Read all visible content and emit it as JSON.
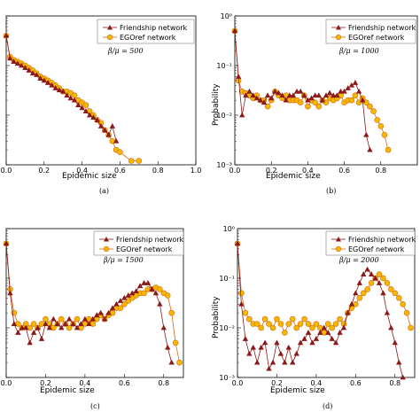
{
  "colors": {
    "friendship": "#8b1a1a",
    "egoref_fill": "#f5b800",
    "egoref_line": "#d96a10"
  },
  "chart_data": [
    {
      "type": "line",
      "caption": "(a)",
      "annotation": "β/μ = 500",
      "xlabel": "Epidemic size",
      "ylabel": "",
      "xlim": [
        0,
        1.0
      ],
      "ylim": [
        0.001,
        1
      ],
      "yscale": "log",
      "x_ticks": [
        "0.0",
        "0.2",
        "0.4",
        "0.6",
        "0.8",
        "1.0"
      ],
      "y_tick_labels": [
        "",
        "",
        "",
        ""
      ],
      "legend": [
        "Friendship network",
        "EGOref network"
      ],
      "legend_position": "top-right",
      "series": [
        {
          "name": "Friendship network",
          "marker": "triangle",
          "x": [
            0.0,
            0.02,
            0.04,
            0.06,
            0.08,
            0.1,
            0.12,
            0.14,
            0.16,
            0.18,
            0.2,
            0.22,
            0.24,
            0.26,
            0.28,
            0.3,
            0.32,
            0.34,
            0.36,
            0.38,
            0.4,
            0.42,
            0.44,
            0.46,
            0.48,
            0.5,
            0.52,
            0.54,
            0.56,
            0.58
          ],
          "y": [
            0.4,
            0.14,
            0.12,
            0.11,
            0.1,
            0.09,
            0.08,
            0.07,
            0.065,
            0.055,
            0.05,
            0.045,
            0.04,
            0.035,
            0.032,
            0.03,
            0.025,
            0.022,
            0.02,
            0.016,
            0.014,
            0.012,
            0.01,
            0.009,
            0.008,
            0.006,
            0.005,
            0.004,
            0.006,
            0.003
          ]
        },
        {
          "name": "EGOref network",
          "marker": "circle",
          "x": [
            0.0,
            0.02,
            0.04,
            0.06,
            0.08,
            0.1,
            0.12,
            0.14,
            0.16,
            0.18,
            0.2,
            0.22,
            0.24,
            0.26,
            0.28,
            0.3,
            0.32,
            0.34,
            0.36,
            0.38,
            0.4,
            0.42,
            0.44,
            0.46,
            0.48,
            0.5,
            0.52,
            0.54,
            0.56,
            0.58,
            0.6,
            0.66,
            0.7
          ],
          "y": [
            0.4,
            0.15,
            0.13,
            0.12,
            0.11,
            0.1,
            0.09,
            0.08,
            0.07,
            0.06,
            0.055,
            0.05,
            0.045,
            0.04,
            0.035,
            0.03,
            0.03,
            0.028,
            0.025,
            0.02,
            0.018,
            0.016,
            0.012,
            0.01,
            0.008,
            0.007,
            0.005,
            0.004,
            0.003,
            0.002,
            0.0018,
            0.0012,
            0.0012
          ]
        }
      ]
    },
    {
      "type": "line",
      "caption": "(b)",
      "annotation": "β/μ = 1000",
      "xlabel": "Epidemic size",
      "ylabel": "Probability",
      "xlim": [
        0,
        1.0
      ],
      "ylim": [
        0.001,
        1
      ],
      "yscale": "log",
      "x_ticks": [
        "0.0",
        "0.2",
        "0.4",
        "0.6",
        "0.8"
      ],
      "y_tick_labels": [
        "10⁰",
        "10⁻¹",
        "10⁻²",
        "10⁻³"
      ],
      "legend": [
        "Friendship network",
        "EGOref network"
      ],
      "legend_position": "top-right",
      "series": [
        {
          "name": "Friendship network",
          "marker": "triangle",
          "x": [
            0.0,
            0.02,
            0.04,
            0.06,
            0.08,
            0.1,
            0.12,
            0.14,
            0.16,
            0.18,
            0.2,
            0.22,
            0.24,
            0.26,
            0.28,
            0.3,
            0.32,
            0.34,
            0.36,
            0.38,
            0.4,
            0.42,
            0.44,
            0.46,
            0.48,
            0.5,
            0.52,
            0.54,
            0.56,
            0.58,
            0.6,
            0.62,
            0.64,
            0.66,
            0.68,
            0.7,
            0.72,
            0.74
          ],
          "y": [
            0.5,
            0.06,
            0.01,
            0.025,
            0.03,
            0.025,
            0.022,
            0.02,
            0.018,
            0.025,
            0.022,
            0.03,
            0.028,
            0.025,
            0.02,
            0.025,
            0.025,
            0.03,
            0.03,
            0.025,
            0.02,
            0.022,
            0.025,
            0.025,
            0.02,
            0.025,
            0.028,
            0.025,
            0.025,
            0.03,
            0.03,
            0.035,
            0.04,
            0.045,
            0.03,
            0.02,
            0.004,
            0.002
          ]
        },
        {
          "name": "EGOref network",
          "marker": "circle",
          "x": [
            0.0,
            0.02,
            0.04,
            0.06,
            0.08,
            0.1,
            0.12,
            0.14,
            0.16,
            0.18,
            0.2,
            0.22,
            0.24,
            0.26,
            0.28,
            0.3,
            0.32,
            0.34,
            0.36,
            0.38,
            0.4,
            0.42,
            0.44,
            0.46,
            0.48,
            0.5,
            0.52,
            0.54,
            0.56,
            0.58,
            0.6,
            0.62,
            0.64,
            0.66,
            0.68,
            0.7,
            0.72,
            0.74,
            0.76,
            0.78,
            0.8,
            0.82,
            0.84
          ],
          "y": [
            0.5,
            0.05,
            0.03,
            0.028,
            0.025,
            0.022,
            0.025,
            0.02,
            0.02,
            0.015,
            0.02,
            0.03,
            0.025,
            0.022,
            0.025,
            0.02,
            0.02,
            0.02,
            0.018,
            0.025,
            0.015,
            0.02,
            0.018,
            0.015,
            0.02,
            0.018,
            0.022,
            0.02,
            0.022,
            0.025,
            0.018,
            0.02,
            0.02,
            0.025,
            0.018,
            0.022,
            0.018,
            0.015,
            0.012,
            0.008,
            0.006,
            0.004,
            0.002
          ]
        }
      ]
    },
    {
      "type": "line",
      "caption": "(c)",
      "annotation": "β/μ = 1500",
      "xlabel": "Epidemic size",
      "ylabel": "",
      "xlim": [
        0,
        0.9
      ],
      "ylim": [
        0.001,
        1
      ],
      "yscale": "log",
      "x_ticks": [
        "0.0",
        "0.2",
        "0.4",
        "0.6",
        "0.8"
      ],
      "y_tick_labels": [
        "",
        "",
        "",
        ""
      ],
      "legend": [
        "Friendship network",
        "EGOref network"
      ],
      "legend_position": "top-right",
      "series": [
        {
          "name": "Friendship network",
          "marker": "triangle",
          "x": [
            0.0,
            0.02,
            0.04,
            0.06,
            0.08,
            0.1,
            0.12,
            0.14,
            0.16,
            0.18,
            0.2,
            0.22,
            0.24,
            0.26,
            0.28,
            0.3,
            0.32,
            0.34,
            0.36,
            0.38,
            0.4,
            0.42,
            0.44,
            0.46,
            0.48,
            0.5,
            0.52,
            0.54,
            0.56,
            0.58,
            0.6,
            0.62,
            0.64,
            0.66,
            0.68,
            0.7,
            0.72,
            0.74,
            0.76,
            0.78,
            0.8,
            0.82,
            0.84
          ],
          "y": [
            0.5,
            0.05,
            0.012,
            0.008,
            0.01,
            0.01,
            0.005,
            0.008,
            0.01,
            0.006,
            0.012,
            0.01,
            0.015,
            0.012,
            0.01,
            0.012,
            0.015,
            0.012,
            0.01,
            0.012,
            0.015,
            0.012,
            0.015,
            0.018,
            0.02,
            0.015,
            0.02,
            0.025,
            0.03,
            0.035,
            0.04,
            0.045,
            0.05,
            0.055,
            0.07,
            0.08,
            0.08,
            0.06,
            0.05,
            0.03,
            0.01,
            0.004,
            0.002
          ]
        },
        {
          "name": "EGOref network",
          "marker": "circle",
          "x": [
            0.0,
            0.02,
            0.04,
            0.06,
            0.08,
            0.1,
            0.12,
            0.14,
            0.16,
            0.18,
            0.2,
            0.22,
            0.24,
            0.26,
            0.28,
            0.3,
            0.32,
            0.34,
            0.36,
            0.38,
            0.4,
            0.42,
            0.44,
            0.46,
            0.48,
            0.5,
            0.52,
            0.54,
            0.56,
            0.58,
            0.6,
            0.62,
            0.64,
            0.66,
            0.68,
            0.7,
            0.72,
            0.74,
            0.76,
            0.78,
            0.8,
            0.82,
            0.84,
            0.86,
            0.88
          ],
          "y": [
            0.5,
            0.06,
            0.02,
            0.012,
            0.01,
            0.012,
            0.01,
            0.012,
            0.01,
            0.012,
            0.015,
            0.012,
            0.01,
            0.012,
            0.015,
            0.012,
            0.01,
            0.012,
            0.015,
            0.01,
            0.012,
            0.015,
            0.012,
            0.015,
            0.018,
            0.015,
            0.018,
            0.02,
            0.025,
            0.025,
            0.03,
            0.035,
            0.04,
            0.045,
            0.05,
            0.05,
            0.06,
            0.06,
            0.065,
            0.06,
            0.05,
            0.045,
            0.02,
            0.005,
            0.002
          ]
        }
      ]
    },
    {
      "type": "line",
      "caption": "(d)",
      "annotation": "β/μ = 2000",
      "xlabel": "Epidemic size",
      "ylabel": "Probability",
      "xlim": [
        0,
        0.9
      ],
      "ylim": [
        0.001,
        1
      ],
      "yscale": "log",
      "x_ticks": [
        "0.0",
        "0.2",
        "0.4",
        "0.6",
        "0.8"
      ],
      "y_tick_labels": [
        "10⁰",
        "10⁻¹",
        "10⁻²",
        "10⁻³"
      ],
      "legend": [
        "Friendship network",
        "EGOref network"
      ],
      "legend_position": "top-right",
      "series": [
        {
          "name": "Friendship network",
          "marker": "triangle",
          "x": [
            0.0,
            0.02,
            0.04,
            0.06,
            0.08,
            0.1,
            0.12,
            0.14,
            0.16,
            0.18,
            0.2,
            0.22,
            0.24,
            0.26,
            0.28,
            0.3,
            0.32,
            0.34,
            0.36,
            0.38,
            0.4,
            0.42,
            0.44,
            0.46,
            0.48,
            0.5,
            0.52,
            0.54,
            0.56,
            0.58,
            0.6,
            0.62,
            0.64,
            0.66,
            0.68,
            0.7,
            0.72,
            0.74,
            0.76,
            0.78,
            0.8,
            0.82,
            0.84
          ],
          "y": [
            0.5,
            0.03,
            0.006,
            0.003,
            0.004,
            0.002,
            0.004,
            0.005,
            0.0015,
            0.002,
            0.005,
            0.003,
            0.002,
            0.004,
            0.002,
            0.003,
            0.005,
            0.006,
            0.008,
            0.005,
            0.006,
            0.008,
            0.01,
            0.008,
            0.006,
            0.005,
            0.008,
            0.01,
            0.02,
            0.03,
            0.05,
            0.08,
            0.12,
            0.15,
            0.12,
            0.1,
            0.08,
            0.05,
            0.02,
            0.01,
            0.005,
            0.002,
            0.001
          ]
        },
        {
          "name": "EGOref network",
          "marker": "circle",
          "x": [
            0.0,
            0.02,
            0.04,
            0.06,
            0.08,
            0.1,
            0.12,
            0.14,
            0.16,
            0.18,
            0.2,
            0.22,
            0.24,
            0.26,
            0.28,
            0.3,
            0.32,
            0.34,
            0.36,
            0.38,
            0.4,
            0.42,
            0.44,
            0.46,
            0.48,
            0.5,
            0.52,
            0.54,
            0.56,
            0.58,
            0.6,
            0.62,
            0.64,
            0.66,
            0.68,
            0.7,
            0.72,
            0.74,
            0.76,
            0.78,
            0.8,
            0.82,
            0.84,
            0.86,
            0.88
          ],
          "y": [
            0.5,
            0.05,
            0.02,
            0.015,
            0.012,
            0.012,
            0.01,
            0.015,
            0.012,
            0.01,
            0.015,
            0.012,
            0.008,
            0.012,
            0.015,
            0.01,
            0.012,
            0.015,
            0.012,
            0.01,
            0.012,
            0.01,
            0.008,
            0.012,
            0.01,
            0.012,
            0.015,
            0.012,
            0.02,
            0.025,
            0.03,
            0.04,
            0.05,
            0.06,
            0.08,
            0.1,
            0.12,
            0.1,
            0.08,
            0.06,
            0.05,
            0.04,
            0.03,
            0.02,
            0.01
          ]
        }
      ]
    }
  ]
}
